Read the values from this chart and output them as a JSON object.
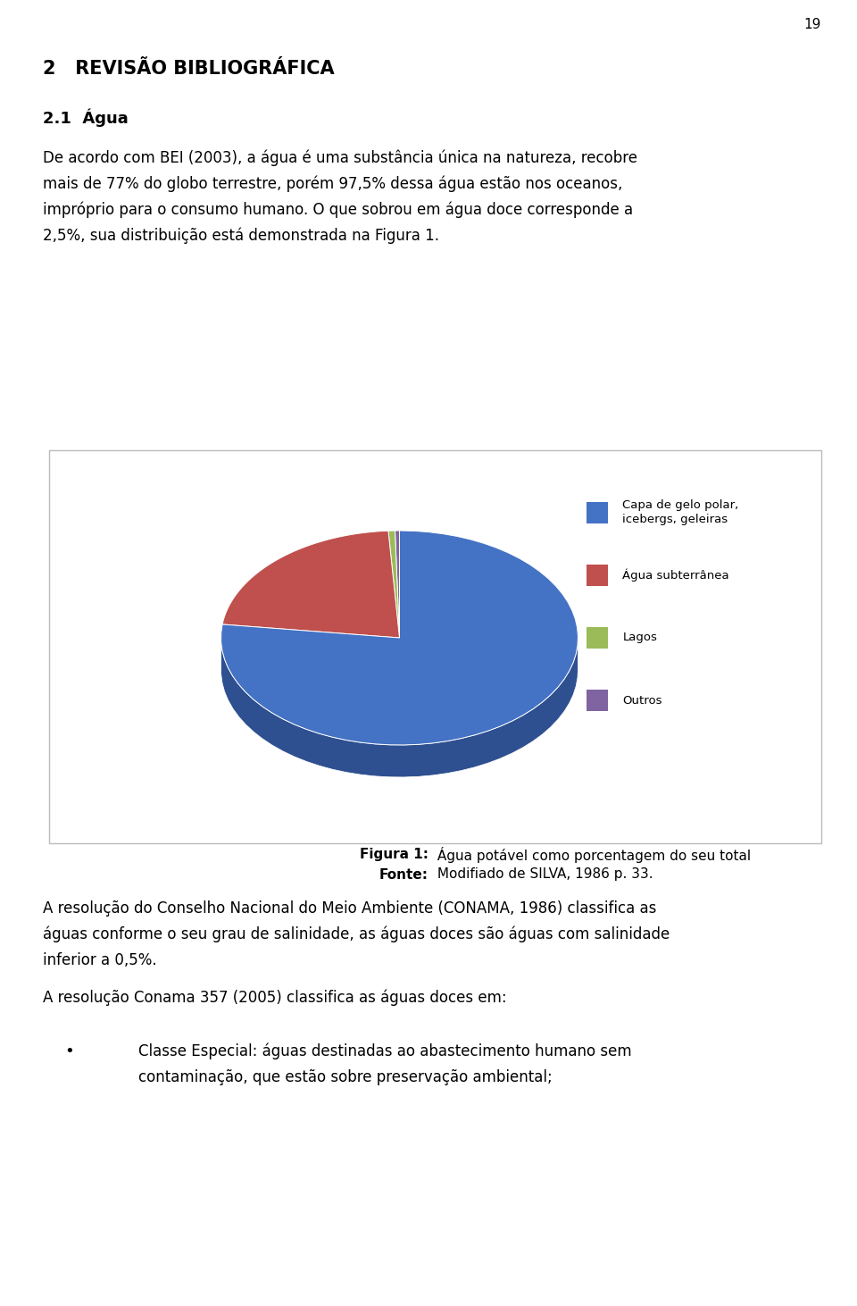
{
  "page_number": "19",
  "section_title": "2   REVISÃO BIBLIOGRÁFICA",
  "subsection_title": "2.1  Água",
  "para1_lines": [
    "De acordo com BEI (2003), a água é uma substância única na natureza, recobre",
    "mais de 77% do globo terrestre, porém 97,5% dessa água estão nos oceanos,",
    "impróprio para o consumo humano. O que sobrou em água doce corresponde a",
    "2,5%, sua distribuição está demonstrada na Figura 1."
  ],
  "pie_values": [
    77.0,
    22.0,
    0.6,
    0.4
  ],
  "pie_colors_top": [
    "#4472C4",
    "#C0504D",
    "#9BBB59",
    "#8064A2"
  ],
  "pie_colors_side": [
    "#2E5090",
    "#8B3330",
    "#6A8A30",
    "#5A3F7A"
  ],
  "pie_labels": [
    "Capa de gelo polar,\nicebergs, geleiras",
    "Água subterrânea",
    "Lagos",
    "Outros"
  ],
  "figure_caption_bold": "Figura 1:",
  "figure_caption_text": " Água potável como porcentagem do seu total",
  "figure_source_bold": "Fonte:",
  "figure_source_text": " Modifiado de SILVA, 1986 p. 33.",
  "para2_lines": [
    "A resolução do Conselho Nacional do Meio Ambiente (CONAMA, 1986) classifica as",
    "águas conforme o seu grau de salinidade, as águas doces são águas com salinidade",
    "inferior a 0,5%."
  ],
  "para3": "A resolução Conama 357 (2005) classifica as águas doces em:",
  "bullet_lines": [
    "Classe Especial: águas destinadas ao abastecimento humano sem",
    "contaminação, que estão sobre preservação ambiental;"
  ],
  "background_color": "#FFFFFF",
  "text_color": "#000000"
}
